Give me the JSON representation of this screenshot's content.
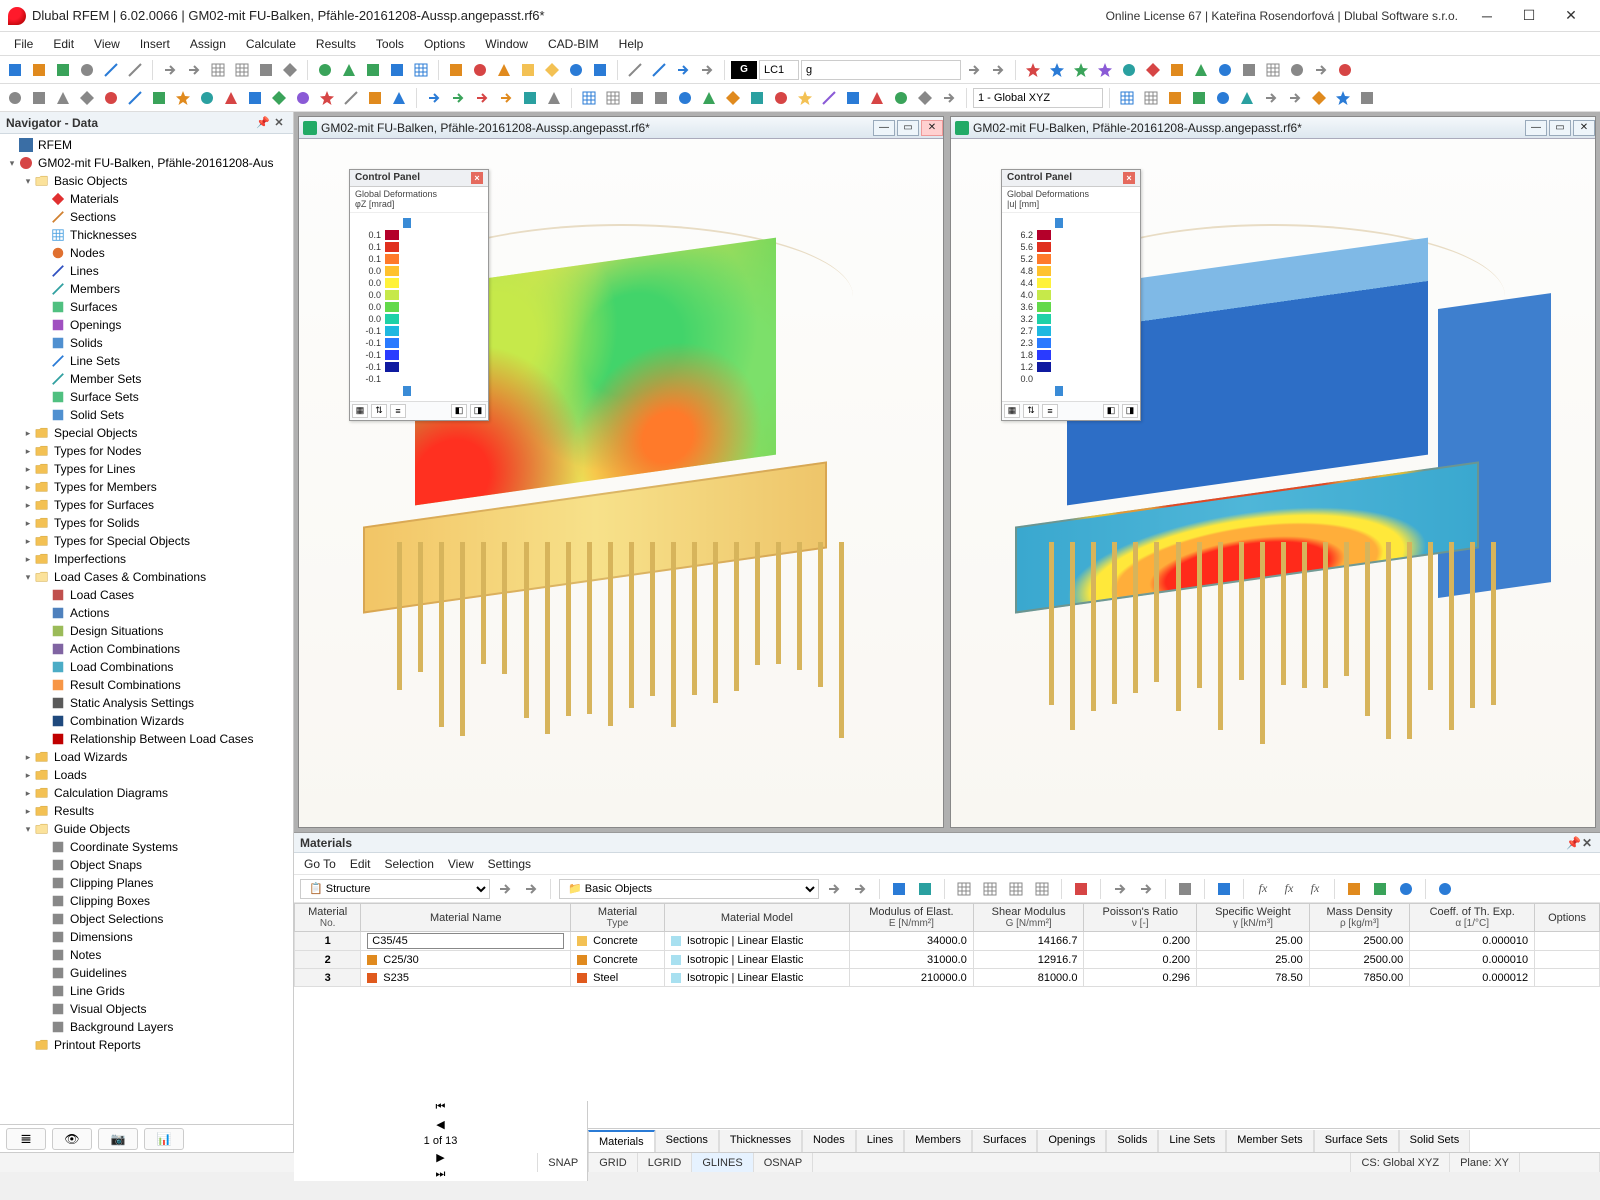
{
  "title": "Dlubal RFEM | 6.02.0066 | GM02-mit FU-Balken, Pfähle-20161208-Aussp.angepasst.rf6*",
  "license": "Online License 67 | Kateřina Rosendorfová | Dlubal Software s.r.o.",
  "menu": [
    "File",
    "Edit",
    "View",
    "Insert",
    "Assign",
    "Calculate",
    "Results",
    "Tools",
    "Options",
    "Window",
    "CAD-BIM",
    "Help"
  ],
  "lc_label": "LC1",
  "lc_desc": "g",
  "coord_sys": "1 - Global XYZ",
  "navigator": {
    "title": "Navigator - Data",
    "root": "RFEM",
    "model": "GM02-mit FU-Balken, Pfähle-20161208-Aus",
    "basic_objects": "Basic Objects",
    "items_basic": [
      "Materials",
      "Sections",
      "Thicknesses",
      "Nodes",
      "Lines",
      "Members",
      "Surfaces",
      "Openings",
      "Solids",
      "Line Sets",
      "Member Sets",
      "Surface Sets",
      "Solid Sets"
    ],
    "items_mid": [
      "Special Objects",
      "Types for Nodes",
      "Types for Lines",
      "Types for Members",
      "Types for Surfaces",
      "Types for Solids",
      "Types for Special Objects",
      "Imperfections"
    ],
    "loadcases": "Load Cases & Combinations",
    "items_lc": [
      "Load Cases",
      "Actions",
      "Design Situations",
      "Action Combinations",
      "Load Combinations",
      "Result Combinations",
      "Static Analysis Settings",
      "Combination Wizards",
      "Relationship Between Load Cases"
    ],
    "items_after": [
      "Load Wizards",
      "Loads",
      "Calculation Diagrams",
      "Results"
    ],
    "guide": "Guide Objects",
    "items_guide": [
      "Coordinate Systems",
      "Object Snaps",
      "Clipping Planes",
      "Clipping Boxes",
      "Object Selections",
      "Dimensions",
      "Notes",
      "Guidelines",
      "Line Grids",
      "Visual Objects",
      "Background Layers"
    ],
    "printout": "Printout Reports"
  },
  "view_title": "GM02-mit FU-Balken, Pfähle-20161208-Aussp.angepasst.rf6*",
  "cp": {
    "title": "Control Panel",
    "left_sub": "Global Deformations\nφZ [mrad]",
    "right_sub": "Global Deformations\n|u| [mm]",
    "scale_left": {
      "values": [
        "0.1",
        "0.1",
        "0.1",
        "0.0",
        "0.0",
        "0.0",
        "0.0",
        "0.0",
        "-0.1",
        "-0.1",
        "-0.1",
        "-0.1",
        "-0.1"
      ],
      "colors": [
        "#b4002a",
        "#e0301e",
        "#ff7a2a",
        "#ffc22e",
        "#fff23a",
        "#c6e94a",
        "#63d94a",
        "#1fd1a7",
        "#1fb8e0",
        "#2a7aff",
        "#2a3bff",
        "#0f1aa0"
      ]
    },
    "scale_right": {
      "values": [
        "6.2",
        "5.6",
        "5.2",
        "4.8",
        "4.4",
        "4.0",
        "3.6",
        "3.2",
        "2.7",
        "2.3",
        "1.8",
        "1.2",
        "0.0"
      ],
      "colors": [
        "#b4002a",
        "#e0301e",
        "#ff7a2a",
        "#ffc22e",
        "#fff23a",
        "#c6e94a",
        "#63d94a",
        "#1fd1a7",
        "#1fb8e0",
        "#2a7aff",
        "#2a3bff",
        "#0f1aa0"
      ]
    }
  },
  "mat_panel": {
    "title": "Materials",
    "menu": [
      "Go To",
      "Edit",
      "Selection",
      "View",
      "Settings"
    ],
    "structure": "Structure",
    "basic": "Basic Objects",
    "columns": [
      {
        "h1": "Material",
        "h2": "No."
      },
      {
        "h1": "Material Name",
        "h2": ""
      },
      {
        "h1": "Material",
        "h2": "Type"
      },
      {
        "h1": "Material Model",
        "h2": ""
      },
      {
        "h1": "Modulus of Elast.",
        "h2": "E [N/mm²]"
      },
      {
        "h1": "Shear Modulus",
        "h2": "G [N/mm²]"
      },
      {
        "h1": "Poisson's Ratio",
        "h2": "ν [-]"
      },
      {
        "h1": "Specific Weight",
        "h2": "γ [kN/m³]"
      },
      {
        "h1": "Mass Density",
        "h2": "ρ [kg/m³]"
      },
      {
        "h1": "Coeff. of Th. Exp.",
        "h2": "α [1/°C]"
      },
      {
        "h1": "Options",
        "h2": ""
      }
    ],
    "rows": [
      {
        "no": "1",
        "name": "C35/45",
        "sw": "#f3c154",
        "type": "Concrete",
        "model": "Isotropic | Linear Elastic",
        "E": "34000.0",
        "G": "14166.7",
        "nu": "0.200",
        "gam": "25.00",
        "rho": "2500.00",
        "alpha": "0.000010",
        "editable": true
      },
      {
        "no": "2",
        "name": "C25/30",
        "sw": "#e08a1e",
        "type": "Concrete",
        "model": "Isotropic | Linear Elastic",
        "E": "31000.0",
        "G": "12916.7",
        "nu": "0.200",
        "gam": "25.00",
        "rho": "2500.00",
        "alpha": "0.000010"
      },
      {
        "no": "3",
        "name": "S235",
        "sw": "#e05a1e",
        "type": "Steel",
        "model": "Isotropic | Linear Elastic",
        "E": "210000.0",
        "G": "81000.0",
        "nu": "0.296",
        "gam": "78.50",
        "rho": "7850.00",
        "alpha": "0.000012"
      }
    ],
    "page": "1 of 13",
    "tabs": [
      "Materials",
      "Sections",
      "Thicknesses",
      "Nodes",
      "Lines",
      "Members",
      "Surfaces",
      "Openings",
      "Solids",
      "Line Sets",
      "Member Sets",
      "Surface Sets",
      "Solid Sets"
    ]
  },
  "status": {
    "modes": [
      "SNAP",
      "GRID",
      "LGRID",
      "GLINES",
      "OSNAP"
    ],
    "cs": "CS: Global XYZ",
    "plane": "Plane: XY"
  },
  "basic_icon_colors": [
    "#e03030",
    "#d08030",
    "#4aa0e0",
    "#e07030",
    "#3050c0",
    "#30a0a0",
    "#50c080",
    "#a050c0",
    "#5090d0",
    "#2a7bd6",
    "#30a0a0",
    "#50c080",
    "#5090d0"
  ],
  "lc_icon_colors": [
    "#c0504d",
    "#4f81bd",
    "#9bbb59",
    "#8064a2",
    "#4bacc6",
    "#f79646",
    "#5a5a5a",
    "#1f497d",
    "#c00000"
  ]
}
